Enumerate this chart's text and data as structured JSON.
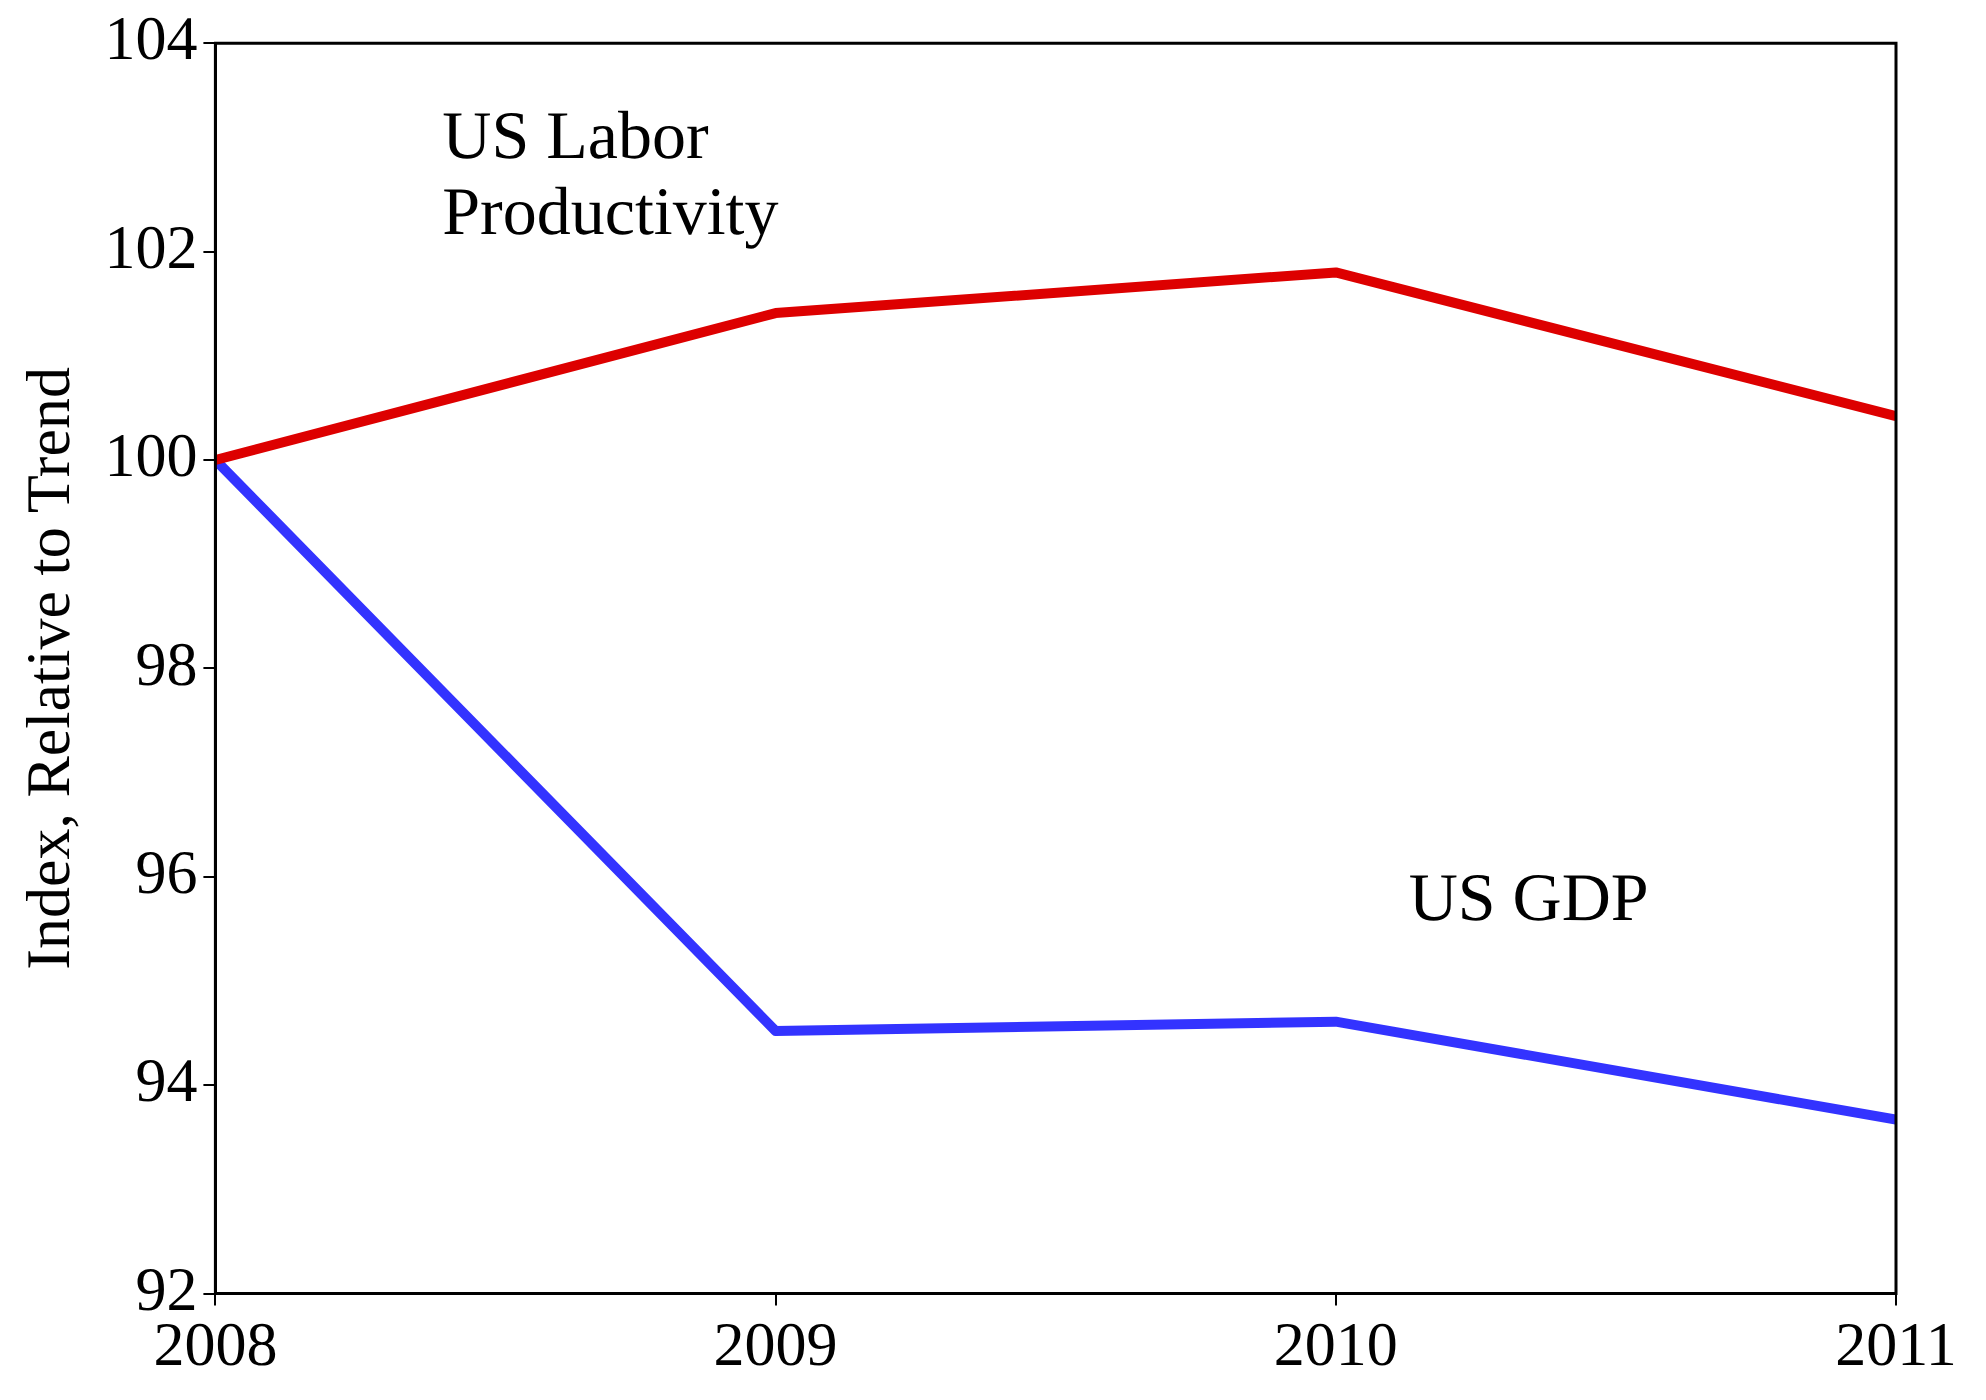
{
  "chart_data": {
    "type": "line",
    "ylabel": "Index, Relative to Trend",
    "x": [
      2008,
      2009,
      2010,
      2011
    ],
    "series": [
      {
        "name": "US Labor Productivity",
        "color": "#dd0000",
        "values": [
          100,
          101.41,
          101.8,
          100.42
        ]
      },
      {
        "name": "US GDP",
        "color": "#3333ff",
        "values": [
          100,
          94.52,
          94.61,
          93.67
        ]
      }
    ],
    "xlim": [
      2008,
      2011
    ],
    "xticks": [
      2008,
      2009,
      2010,
      2011
    ],
    "ylim": [
      92,
      104
    ],
    "yticks": [
      92,
      94,
      96,
      98,
      100,
      102,
      104
    ],
    "grid": false,
    "legend": false,
    "marker": "none",
    "line_style": "solid"
  }
}
